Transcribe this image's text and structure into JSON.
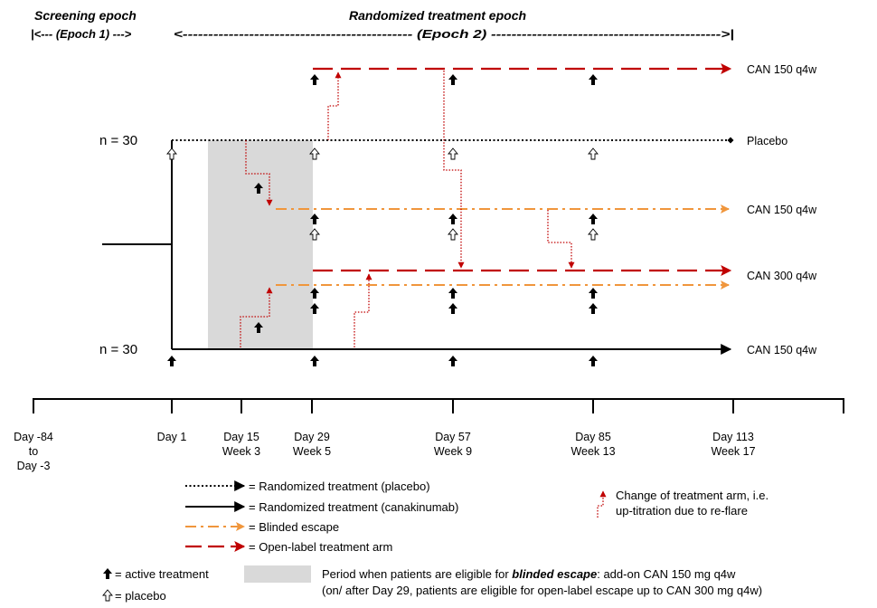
{
  "header": {
    "screening_title": "Screening epoch",
    "screening_sub": "|<--- (Epoch 1) --->",
    "randomized_title": "Randomized treatment epoch",
    "randomized_sub": "<--------------------------------------------- (Epoch 2) --------------------------------------------->|"
  },
  "n_labels": {
    "top": "n = 30",
    "bottom": "n = 30"
  },
  "arms": [
    {
      "label": "CAN 150 q4w",
      "style": "open-label"
    },
    {
      "label": "Placebo",
      "style": "randomized-placebo"
    },
    {
      "label": "CAN 150 q4w",
      "style": "blinded-escape"
    },
    {
      "label": "CAN 300 q4w",
      "style": "open-label"
    },
    {
      "label": "CAN 150 q4w",
      "style": "randomized-canakinumab"
    }
  ],
  "timeline": [
    {
      "lines": [
        "Day -84",
        "to",
        "Day -3"
      ]
    },
    {
      "lines": [
        "Day 1"
      ]
    },
    {
      "lines": [
        "Day 15",
        "Week 3"
      ]
    },
    {
      "lines": [
        "Day 29",
        "Week 5"
      ]
    },
    {
      "lines": [
        "Day 57",
        "Week 9"
      ]
    },
    {
      "lines": [
        "Day 85",
        "Week 13"
      ]
    },
    {
      "lines": [
        "Day 113",
        "Week 17"
      ]
    }
  ],
  "legend": {
    "placebo_line": "= Randomized treatment (placebo)",
    "canakinumab_line": "= Randomized treatment (canakinumab)",
    "blinded_escape": "= Blinded escape",
    "open_label": "= Open-label treatment arm",
    "change_arm_1": "Change of treatment arm, i.e.",
    "change_arm_2": "up-titration due to re-flare",
    "active": "= active treatment",
    "placebo_symbol": "= placebo",
    "period_1_pre": "Period when patients are eligible for ",
    "period_1_em": "blinded escape",
    "period_1_post": ": add-on CAN 150 mg q4w",
    "period_2": "(on/ after Day 29, patients are eligible for open-label escape up to CAN 300 mg q4w)"
  },
  "colors": {
    "black": "#000000",
    "red": "#c00000",
    "orange": "#f0963c",
    "shade": "#d9d9d9"
  }
}
